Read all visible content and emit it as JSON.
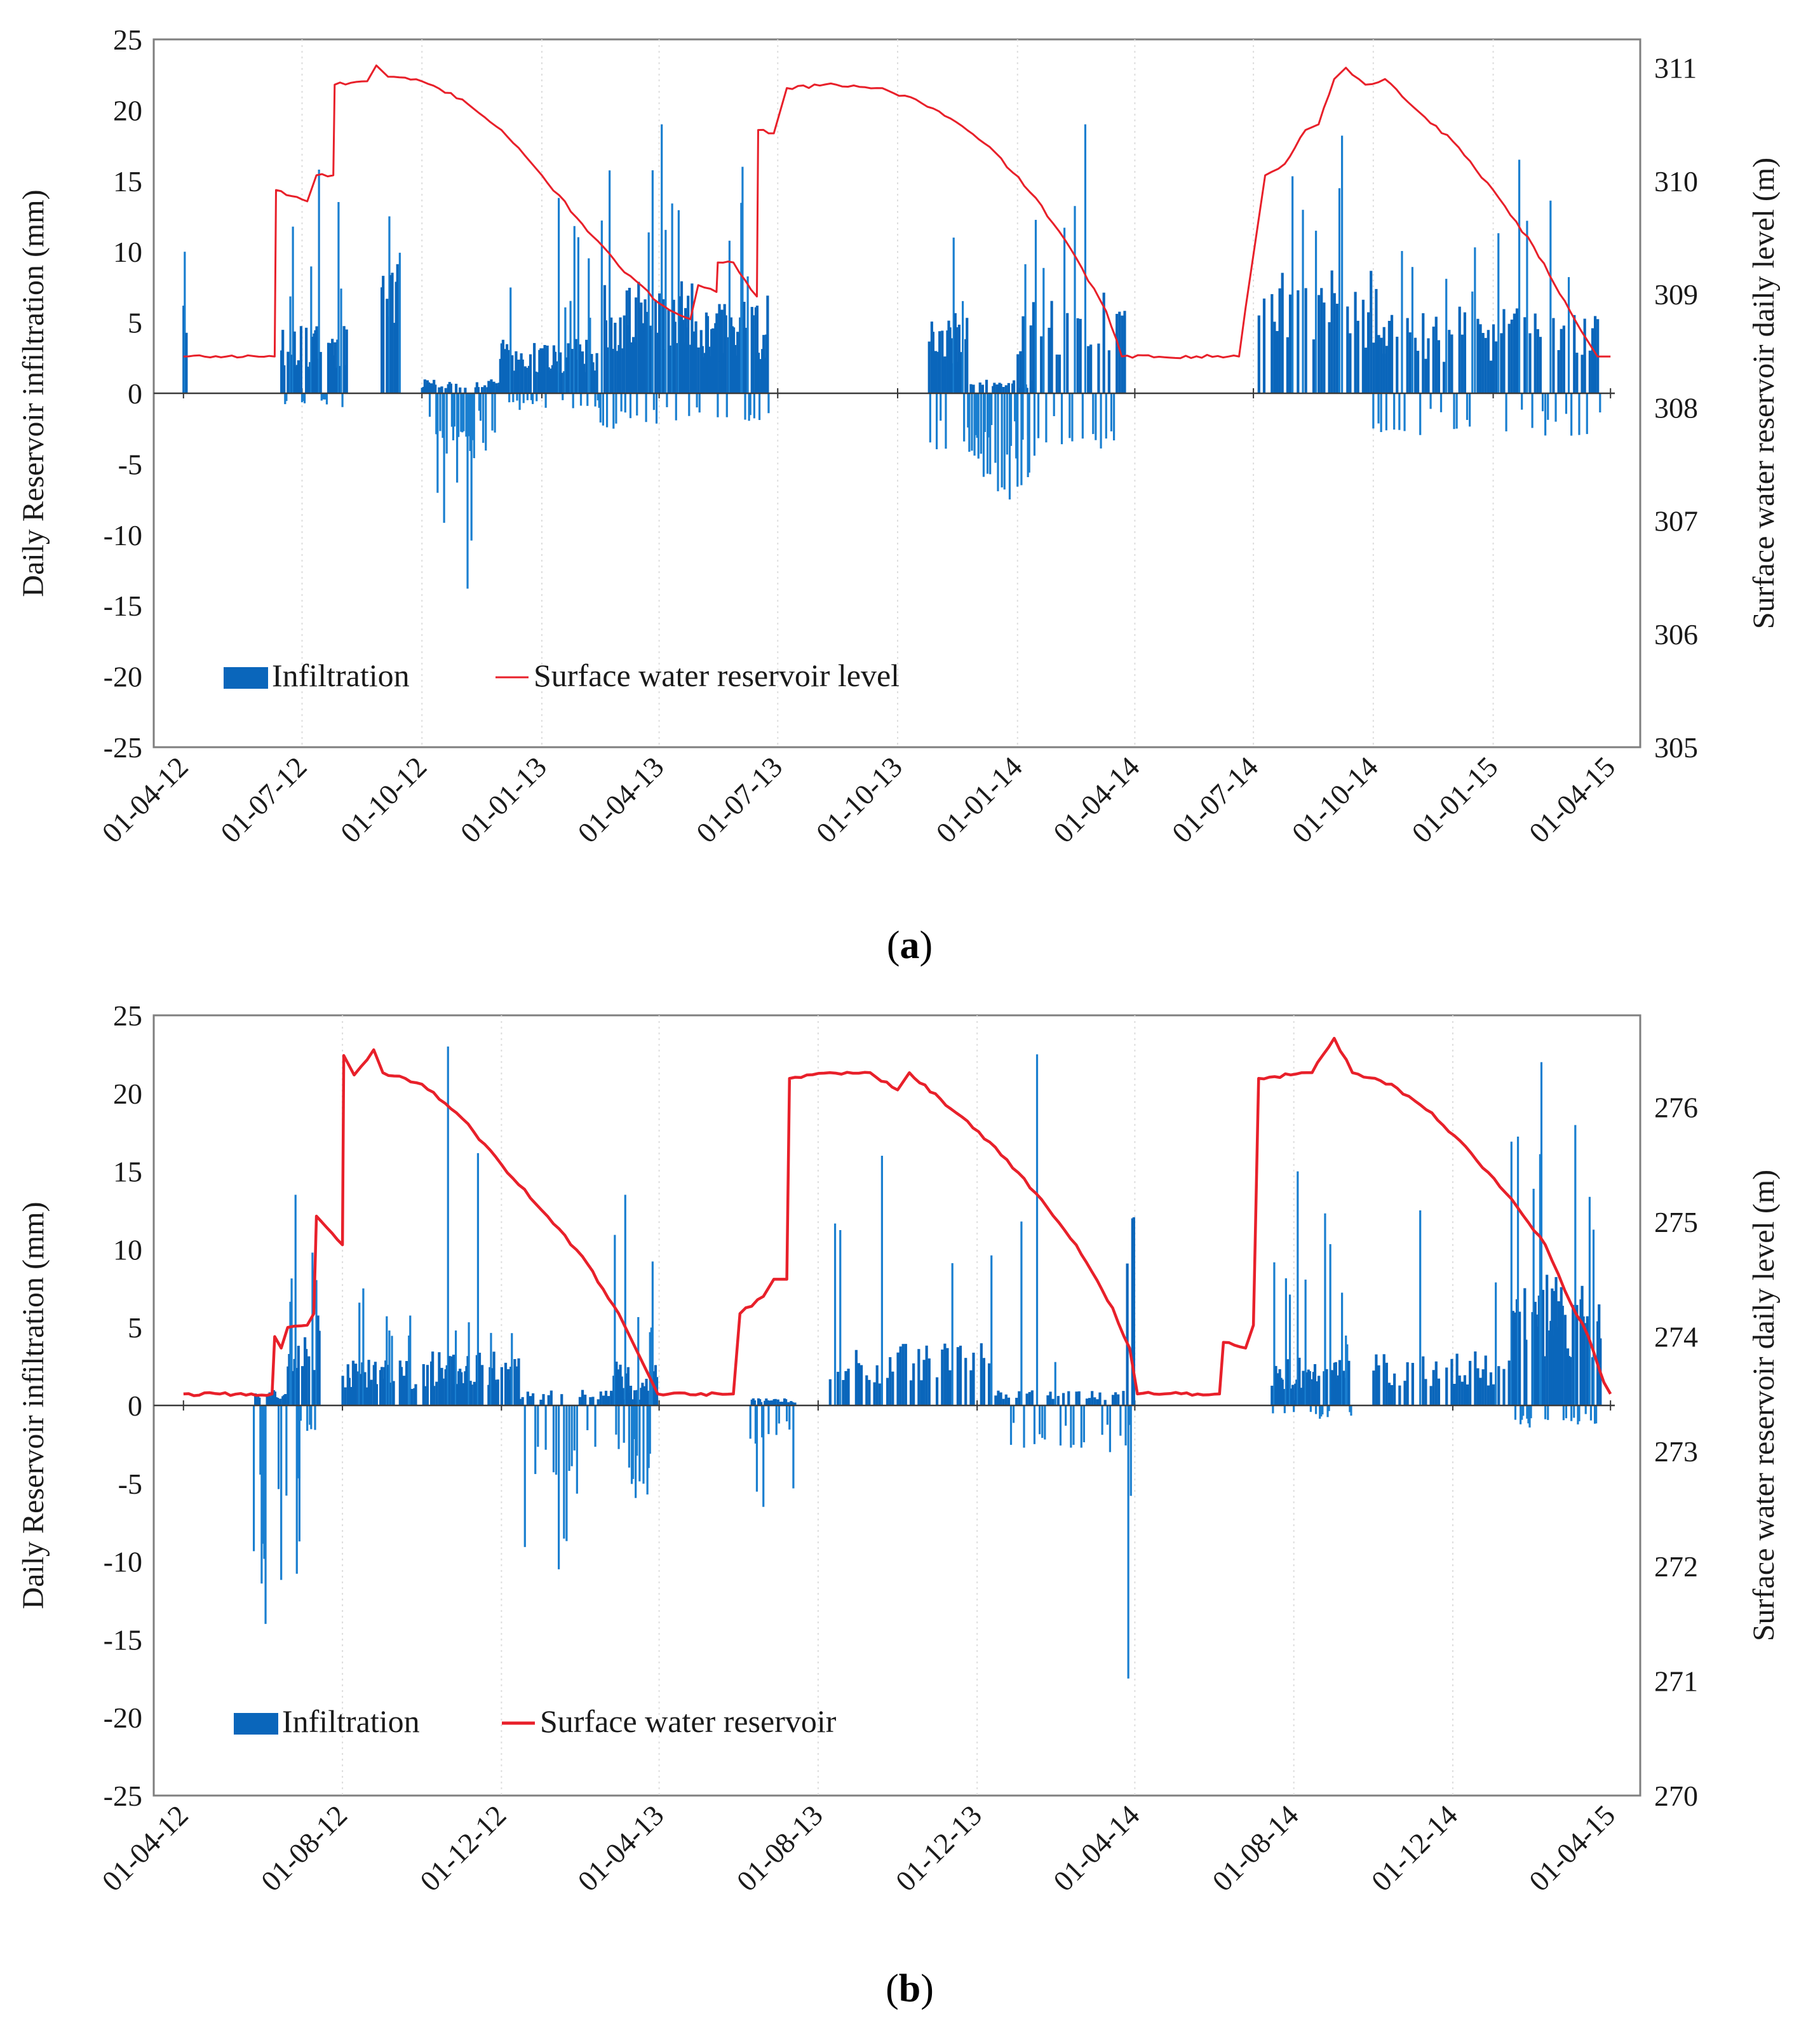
{
  "colors": {
    "infiltration": "#1a7fd0",
    "infiltration_dark": "#0a66bb",
    "level": "#e8202a",
    "axis": "#7f7f7f",
    "grid": "#dedede"
  },
  "chart_data": [
    {
      "type": "bar+line",
      "panel_label": "a",
      "ylabel": "Daily Reservoir infiltration (mm)",
      "y2label": "Surface water reservoir daily level (m)",
      "ylim": [
        -25,
        25
      ],
      "yticks": [
        "25",
        "20",
        "15",
        "10",
        "5",
        "0",
        "-5",
        "-10",
        "-15",
        "-20",
        "-25"
      ],
      "y2lim": [
        305,
        311.25
      ],
      "y2ticks": [
        "311",
        "310",
        "309",
        "308",
        "307",
        "306",
        "305"
      ],
      "xlim": [
        "2012-04-01",
        "2015-04-01"
      ],
      "xticks": [
        "01-04-12",
        "01-07-12",
        "01-10-12",
        "01-01-13",
        "01-04-13",
        "01-07-13",
        "01-10-13",
        "01-01-14",
        "01-04-14",
        "01-07-14",
        "01-10-14",
        "01-01-15",
        "01-04-15"
      ],
      "grid": "vertical dotted",
      "legend_position": "bottom-left",
      "series": [
        {
          "name": "Infiltration",
          "kind": "bar",
          "unit": "mm",
          "ranges": [
            {
              "start": "2012-04-01",
              "end": "2012-04-04",
              "hi": 6,
              "lo": 0,
              "peak": 10
            },
            {
              "start": "2012-06-15",
              "end": "2012-08-05",
              "hi": 5,
              "lo": -1,
              "peak": 15.8
            },
            {
              "start": "2012-08-25",
              "end": "2012-09-15",
              "hi": 9,
              "lo": 0,
              "peak": 12.5
            },
            {
              "start": "2012-10-01",
              "end": "2012-11-30",
              "hi": 1,
              "lo": -3.5,
              "peak": -13.8
            },
            {
              "start": "2012-11-30",
              "end": "2013-02-15",
              "hi": 4,
              "lo": -1.3,
              "peak": 13.8
            },
            {
              "start": "2013-02-15",
              "end": "2013-05-05",
              "hi": 8,
              "lo": -2.5,
              "peak": 19
            },
            {
              "start": "2013-05-05",
              "end": "2013-06-25",
              "hi": 6.5,
              "lo": -2,
              "peak": 16
            },
            {
              "start": "2013-10-25",
              "end": "2013-11-25",
              "hi": 6,
              "lo": -4,
              "peak": 11
            },
            {
              "start": "2013-11-25",
              "end": "2014-01-15",
              "hi": 1,
              "lo": -5,
              "peak": -7.5
            },
            {
              "start": "2014-01-01",
              "end": "2014-03-25",
              "hi": 7,
              "lo": -4,
              "peak": 19
            },
            {
              "start": "2014-07-05",
              "end": "2014-10-15",
              "hi": 9,
              "lo": 0,
              "peak": 18.2
            },
            {
              "start": "2014-10-01",
              "end": "2015-03-25",
              "hi": 6,
              "lo": -3,
              "peak": 16.5
            }
          ]
        },
        {
          "name": "Surface water reservoir level",
          "kind": "line",
          "unit": "m",
          "points": [
            [
              "2012-04-01",
              308.45
            ],
            [
              "2012-06-10",
              308.45
            ],
            [
              "2012-06-11",
              309.92
            ],
            [
              "2012-07-05",
              309.82
            ],
            [
              "2012-07-12",
              310.05
            ],
            [
              "2012-07-25",
              310.05
            ],
            [
              "2012-07-26",
              310.85
            ],
            [
              "2012-08-20",
              310.88
            ],
            [
              "2012-08-27",
              311.02
            ],
            [
              "2012-09-05",
              310.92
            ],
            [
              "2012-10-01",
              310.88
            ],
            [
              "2012-11-01",
              310.72
            ],
            [
              "2012-12-01",
              310.45
            ],
            [
              "2013-01-01",
              310.05
            ],
            [
              "2013-02-01",
              309.62
            ],
            [
              "2013-03-01",
              309.25
            ],
            [
              "2013-04-01",
              308.92
            ],
            [
              "2013-04-25",
              308.78
            ],
            [
              "2013-05-01",
              309.08
            ],
            [
              "2013-05-15",
              309.02
            ],
            [
              "2013-05-16",
              309.28
            ],
            [
              "2013-05-28",
              309.28
            ],
            [
              "2013-06-15",
              308.98
            ],
            [
              "2013-06-16",
              310.45
            ],
            [
              "2013-06-28",
              310.42
            ],
            [
              "2013-07-08",
              310.82
            ],
            [
              "2013-08-15",
              310.85
            ],
            [
              "2013-09-15",
              310.82
            ],
            [
              "2013-10-15",
              310.72
            ],
            [
              "2013-11-15",
              310.52
            ],
            [
              "2013-12-15",
              310.25
            ],
            [
              "2014-01-15",
              309.85
            ],
            [
              "2014-02-15",
              309.32
            ],
            [
              "2014-03-10",
              308.85
            ],
            [
              "2014-03-22",
              308.45
            ],
            [
              "2014-06-20",
              308.45
            ],
            [
              "2014-06-25",
              308.88
            ],
            [
              "2014-07-10",
              310.05
            ],
            [
              "2014-07-25",
              310.15
            ],
            [
              "2014-08-10",
              310.45
            ],
            [
              "2014-08-20",
              310.5
            ],
            [
              "2014-09-01",
              310.9
            ],
            [
              "2014-09-10",
              311.0
            ],
            [
              "2014-09-25",
              310.85
            ],
            [
              "2014-10-10",
              310.9
            ],
            [
              "2014-11-01",
              310.65
            ],
            [
              "2014-12-01",
              310.35
            ],
            [
              "2015-01-01",
              309.92
            ],
            [
              "2015-02-01",
              309.42
            ],
            [
              "2015-03-01",
              308.85
            ],
            [
              "2015-03-22",
              308.45
            ],
            [
              "2015-04-01",
              308.45
            ]
          ]
        }
      ]
    },
    {
      "type": "bar+line",
      "panel_label": "b",
      "ylabel": "Daily Reservoir infiltration (mm)",
      "y2label": "Surface water reservoir daily level (m)",
      "ylim": [
        -25,
        25
      ],
      "yticks": [
        "25",
        "20",
        "15",
        "10",
        "5",
        "0",
        "-5",
        "-10",
        "-15",
        "-20",
        "-25"
      ],
      "y2lim": [
        270,
        276.8
      ],
      "y2ticks": [
        "276",
        "275",
        "274",
        "273",
        "272",
        "271",
        "270"
      ],
      "xlim": [
        "2012-04-01",
        "2015-04-01"
      ],
      "xticks": [
        "01-04-12",
        "01-08-12",
        "01-12-12",
        "01-04-13",
        "01-08-13",
        "01-12-13",
        "01-04-14",
        "01-08-14",
        "01-12-14",
        "01-04-15"
      ],
      "grid": "vertical dotted",
      "legend_position": "bottom-left",
      "series": [
        {
          "name": "Infiltration",
          "kind": "bar",
          "unit": "mm",
          "ranges": [
            {
              "start": "2012-05-25",
              "end": "2012-06-30",
              "hi": 1,
              "lo": -11,
              "peak": -14
            },
            {
              "start": "2012-06-20",
              "end": "2012-07-15",
              "hi": 6,
              "lo": -2,
              "peak": 13.5
            },
            {
              "start": "2012-08-01",
              "end": "2012-10-01",
              "hi": 3,
              "lo": 0,
              "peak": 7.5
            },
            {
              "start": "2012-10-01",
              "end": "2012-12-15",
              "hi": 3.5,
              "lo": 0,
              "peak": 23
            },
            {
              "start": "2012-12-15",
              "end": "2013-03-31",
              "hi": 1,
              "lo": -4.5,
              "peak": -10.5
            },
            {
              "start": "2013-02-25",
              "end": "2013-03-31",
              "hi": 3,
              "lo": -6,
              "peak": 13.5
            },
            {
              "start": "2013-06-10",
              "end": "2013-07-15",
              "hi": 0.5,
              "lo": -2.5,
              "peak": -6.5
            },
            {
              "start": "2013-08-10",
              "end": "2013-12-15",
              "hi": 4,
              "lo": 0,
              "peak": 16
            },
            {
              "start": "2013-12-15",
              "end": "2014-03-25",
              "hi": 1,
              "lo": -3,
              "peak": 22.5
            },
            {
              "start": "2014-03-25",
              "end": "2014-04-01",
              "hi": 12.5,
              "lo": -3,
              "peak": -17.5
            },
            {
              "start": "2014-07-15",
              "end": "2014-09-15",
              "hi": 3,
              "lo": -1,
              "peak": 15
            },
            {
              "start": "2014-10-01",
              "end": "2015-01-15",
              "hi": 3.5,
              "lo": 0,
              "peak": 12.5
            },
            {
              "start": "2015-01-15",
              "end": "2015-03-25",
              "hi": 8.5,
              "lo": -1.5,
              "peak": 22
            }
          ]
        },
        {
          "name": "Surface water reservoir",
          "kind": "line",
          "unit": "m",
          "points": [
            [
              "2012-04-01",
              273.5
            ],
            [
              "2012-06-08",
              273.5
            ],
            [
              "2012-06-10",
              274.0
            ],
            [
              "2012-06-15",
              273.9
            ],
            [
              "2012-06-20",
              274.08
            ],
            [
              "2012-07-05",
              274.1
            ],
            [
              "2012-07-10",
              274.2
            ],
            [
              "2012-07-12",
              275.05
            ],
            [
              "2012-07-20",
              274.95
            ],
            [
              "2012-08-01",
              274.8
            ],
            [
              "2012-08-02",
              276.45
            ],
            [
              "2012-08-10",
              276.28
            ],
            [
              "2012-08-25",
              276.5
            ],
            [
              "2012-09-01",
              276.3
            ],
            [
              "2012-10-01",
              276.2
            ],
            [
              "2012-11-01",
              275.9
            ],
            [
              "2012-12-01",
              275.5
            ],
            [
              "2013-01-01",
              275.1
            ],
            [
              "2013-02-01",
              274.7
            ],
            [
              "2013-03-01",
              274.2
            ],
            [
              "2013-03-31",
              273.5
            ],
            [
              "2013-05-28",
              273.5
            ],
            [
              "2013-06-02",
              274.2
            ],
            [
              "2013-06-20",
              274.35
            ],
            [
              "2013-06-28",
              274.5
            ],
            [
              "2013-07-08",
              274.5
            ],
            [
              "2013-07-10",
              276.25
            ],
            [
              "2013-08-10",
              276.3
            ],
            [
              "2013-09-10",
              276.3
            ],
            [
              "2013-10-01",
              276.15
            ],
            [
              "2013-10-10",
              276.3
            ],
            [
              "2013-11-15",
              275.95
            ],
            [
              "2013-12-15",
              275.65
            ],
            [
              "2014-01-15",
              275.25
            ],
            [
              "2014-02-15",
              274.8
            ],
            [
              "2014-03-15",
              274.25
            ],
            [
              "2014-03-28",
              273.9
            ],
            [
              "2014-04-03",
              273.5
            ],
            [
              "2014-06-05",
              273.5
            ],
            [
              "2014-06-08",
              273.95
            ],
            [
              "2014-06-25",
              273.9
            ],
            [
              "2014-07-01",
              274.1
            ],
            [
              "2014-07-05",
              276.25
            ],
            [
              "2014-08-15",
              276.3
            ],
            [
              "2014-09-01",
              276.6
            ],
            [
              "2014-09-15",
              276.3
            ],
            [
              "2014-10-15",
              276.2
            ],
            [
              "2014-11-15",
              275.95
            ],
            [
              "2014-12-15",
              275.6
            ],
            [
              "2015-01-15",
              275.2
            ],
            [
              "2015-02-10",
              274.8
            ],
            [
              "2015-02-25",
              274.4
            ],
            [
              "2015-03-15",
              274.0
            ],
            [
              "2015-03-27",
              273.6
            ],
            [
              "2015-04-01",
              273.5
            ]
          ]
        }
      ]
    }
  ]
}
